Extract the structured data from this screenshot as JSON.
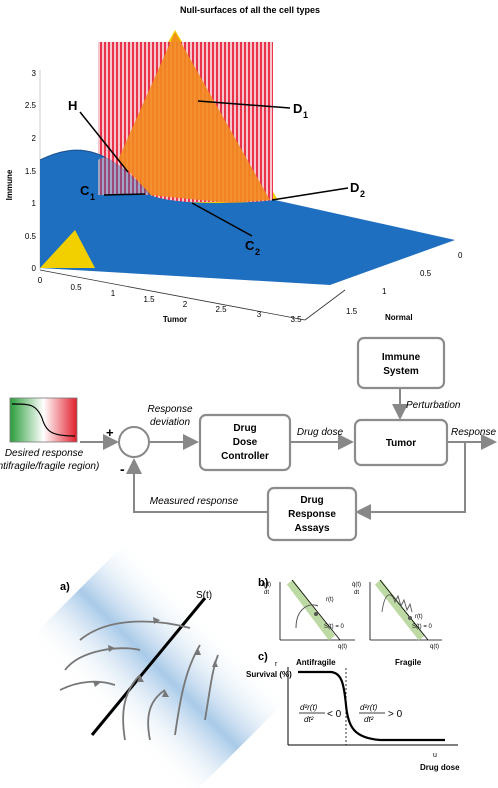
{
  "top_plot": {
    "title": "Null-surfaces of all the cell types",
    "y_label": "Immune",
    "x_label": "Tumor",
    "z_label": "Normal",
    "y_ticks": [
      "0",
      "0.5",
      "1",
      "1.5",
      "2",
      "2.5",
      "3"
    ],
    "x_ticks": [
      "0",
      "0.5",
      "1",
      "1.5",
      "2",
      "2.5",
      "3",
      "3.5"
    ],
    "z_ticks": [
      "0",
      "0.5",
      "1",
      "1.5"
    ],
    "annotations": {
      "h": "H",
      "c1": "C",
      "c1_sub": "1",
      "c2": "C",
      "c2_sub": "2",
      "d1": "D",
      "d1_sub": "1",
      "d2": "D",
      "d2_sub": "2"
    },
    "colors": {
      "blue_surface": "#1f6fc0",
      "yellow_surface": "#f2d000",
      "red_surface": "#e8334a",
      "orange_overlap": "#f28a1f"
    }
  },
  "block_diagram": {
    "desired_response_line1": "Desired response",
    "desired_response_line2": "(antifragile/fragile region)",
    "plus": "+",
    "minus": "-",
    "response_deviation_1": "Response",
    "response_deviation_2": "deviation",
    "controller_1": "Drug",
    "controller_2": "Dose",
    "controller_3": "Controller",
    "drug_dose": "Drug dose",
    "immune_1": "Immune",
    "immune_2": "System",
    "perturbation": "Perturbation",
    "tumor": "Tumor",
    "response": "Response",
    "measured_response": "Measured response",
    "assays_1": "Drug",
    "assays_2": "Response",
    "assays_3": "Assays"
  },
  "bottom": {
    "panel_a": "a)",
    "panel_b": "b)",
    "panel_c": "c)",
    "s_t": "S(t)",
    "b_y_axis_top": "q̇(t)",
    "b_y_axis_bot": "dt",
    "b_x_axis": "q(t)",
    "b_r_t": "r(t)",
    "b_s_eq": "S(t) = 0",
    "c_y_top": "r",
    "c_y_label": "Survival (%)",
    "c_x_top": "u",
    "c_x_label": "Drug dose",
    "antifragile": "Antifragile",
    "fragile": "Fragile",
    "d2_left": "d²r(t)",
    "d2_left_den": "dt²",
    "lt0": "< 0",
    "d2_right": "d²r(t)",
    "d2_right_den": "dt²",
    "gt0": "> 0"
  }
}
